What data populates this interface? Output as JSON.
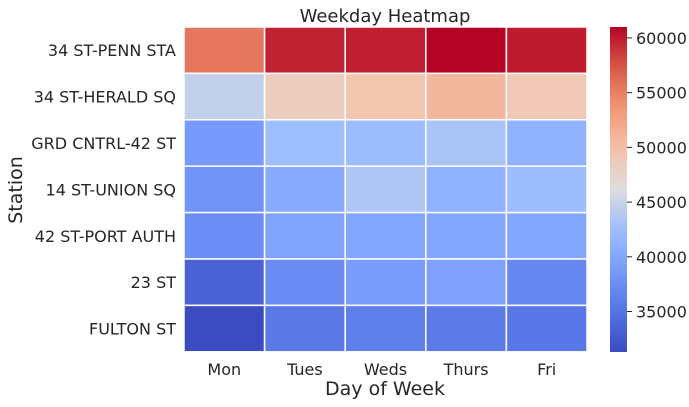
{
  "chart_data": {
    "type": "heatmap",
    "title": "Weekday Heatmap",
    "xlabel": "Day of Week",
    "ylabel": "Station",
    "x_categories": [
      "Mon",
      "Tues",
      "Weds",
      "Thurs",
      "Fri"
    ],
    "y_categories": [
      "34 ST-PENN STA",
      "34 ST-HERALD SQ",
      "GRD CNTRL-42 ST",
      "14 ST-UNION SQ",
      "42 ST-PORT AUTH",
      "23 ST",
      "FULTON ST"
    ],
    "values": [
      [
        55500,
        59700,
        59800,
        61000,
        60000
      ],
      [
        44600,
        48500,
        49500,
        50800,
        49000
      ],
      [
        38600,
        42600,
        42500,
        43300,
        41300
      ],
      [
        38100,
        40500,
        43500,
        41100,
        42500
      ],
      [
        37400,
        39600,
        39800,
        40000,
        40000
      ],
      [
        33400,
        37200,
        38900,
        39500,
        36900
      ],
      [
        31300,
        35500,
        36100,
        35800,
        35400
      ]
    ],
    "colorbar": {
      "colormap": "coolwarm",
      "vmin": 31300,
      "vmax": 61000,
      "ticks": [
        35000,
        40000,
        45000,
        50000,
        55000,
        60000
      ],
      "tick_labels": [
        "35000",
        "40000",
        "45000",
        "50000",
        "55000",
        "60000"
      ]
    },
    "grid": false,
    "cell_separator_color": "#ffffff"
  }
}
